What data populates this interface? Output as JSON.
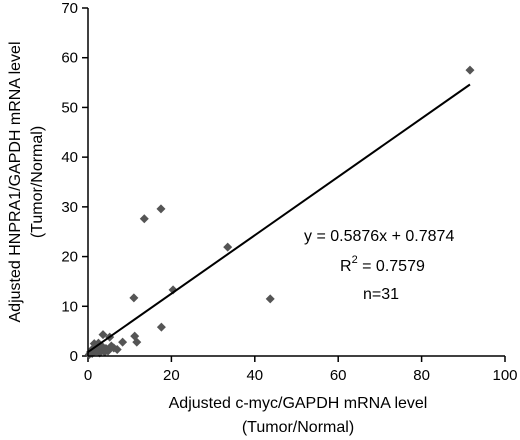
{
  "chart_data": {
    "type": "scatter",
    "title": "",
    "xlabel": "Adjusted c-myc/GAPDH mRNA level",
    "xlabel_sub": "(Tumor/Normal)",
    "ylabel": "Adjusted HNPRA1/GAPDH mRNA level",
    "ylabel_sub": "(Tumor/Normal)",
    "xlim": [
      0,
      100
    ],
    "ylim": [
      0,
      70
    ],
    "xticks": [
      "0",
      "20",
      "40",
      "60",
      "80",
      "100"
    ],
    "yticks": [
      "0",
      "10",
      "20",
      "30",
      "40",
      "50",
      "60",
      "70"
    ],
    "grid": false,
    "marker": "diamond",
    "marker_color": "#555555",
    "line_color": "#000000",
    "points": [
      [
        0.3,
        0.3
      ],
      [
        0.6,
        0.8
      ],
      [
        1.0,
        0.5
      ],
      [
        1.2,
        1.5
      ],
      [
        1.5,
        2.5
      ],
      [
        2.0,
        1.0
      ],
      [
        2.3,
        1.8
      ],
      [
        2.8,
        0.6
      ],
      [
        3.0,
        1.2
      ],
      [
        3.3,
        2.0
      ],
      [
        3.6,
        4.3
      ],
      [
        4.0,
        0.8
      ],
      [
        4.3,
        1.5
      ],
      [
        4.8,
        1.0
      ],
      [
        5.2,
        3.8
      ],
      [
        5.6,
        2.0
      ],
      [
        6.2,
        1.6
      ],
      [
        7.0,
        1.3
      ],
      [
        8.3,
        2.8
      ],
      [
        11.0,
        11.7
      ],
      [
        11.2,
        4.0
      ],
      [
        11.7,
        2.8
      ],
      [
        13.5,
        27.6
      ],
      [
        17.5,
        29.6
      ],
      [
        17.6,
        5.8
      ],
      [
        20.4,
        13.3
      ],
      [
        33.5,
        21.9
      ],
      [
        43.7,
        11.5
      ],
      [
        91.6,
        57.5
      ],
      [
        1.8,
        1.0
      ],
      [
        2.5,
        2.6
      ]
    ],
    "trendline": {
      "slope": 0.5876,
      "intercept": 0.7874,
      "x_range": [
        0,
        91.6
      ]
    },
    "annotations": {
      "equation": "y = 0.5876x + 0.7874",
      "r2_base": "R",
      "r2_sup": "2",
      "r2_rest": " = 0.7579",
      "n": "n=31"
    }
  }
}
